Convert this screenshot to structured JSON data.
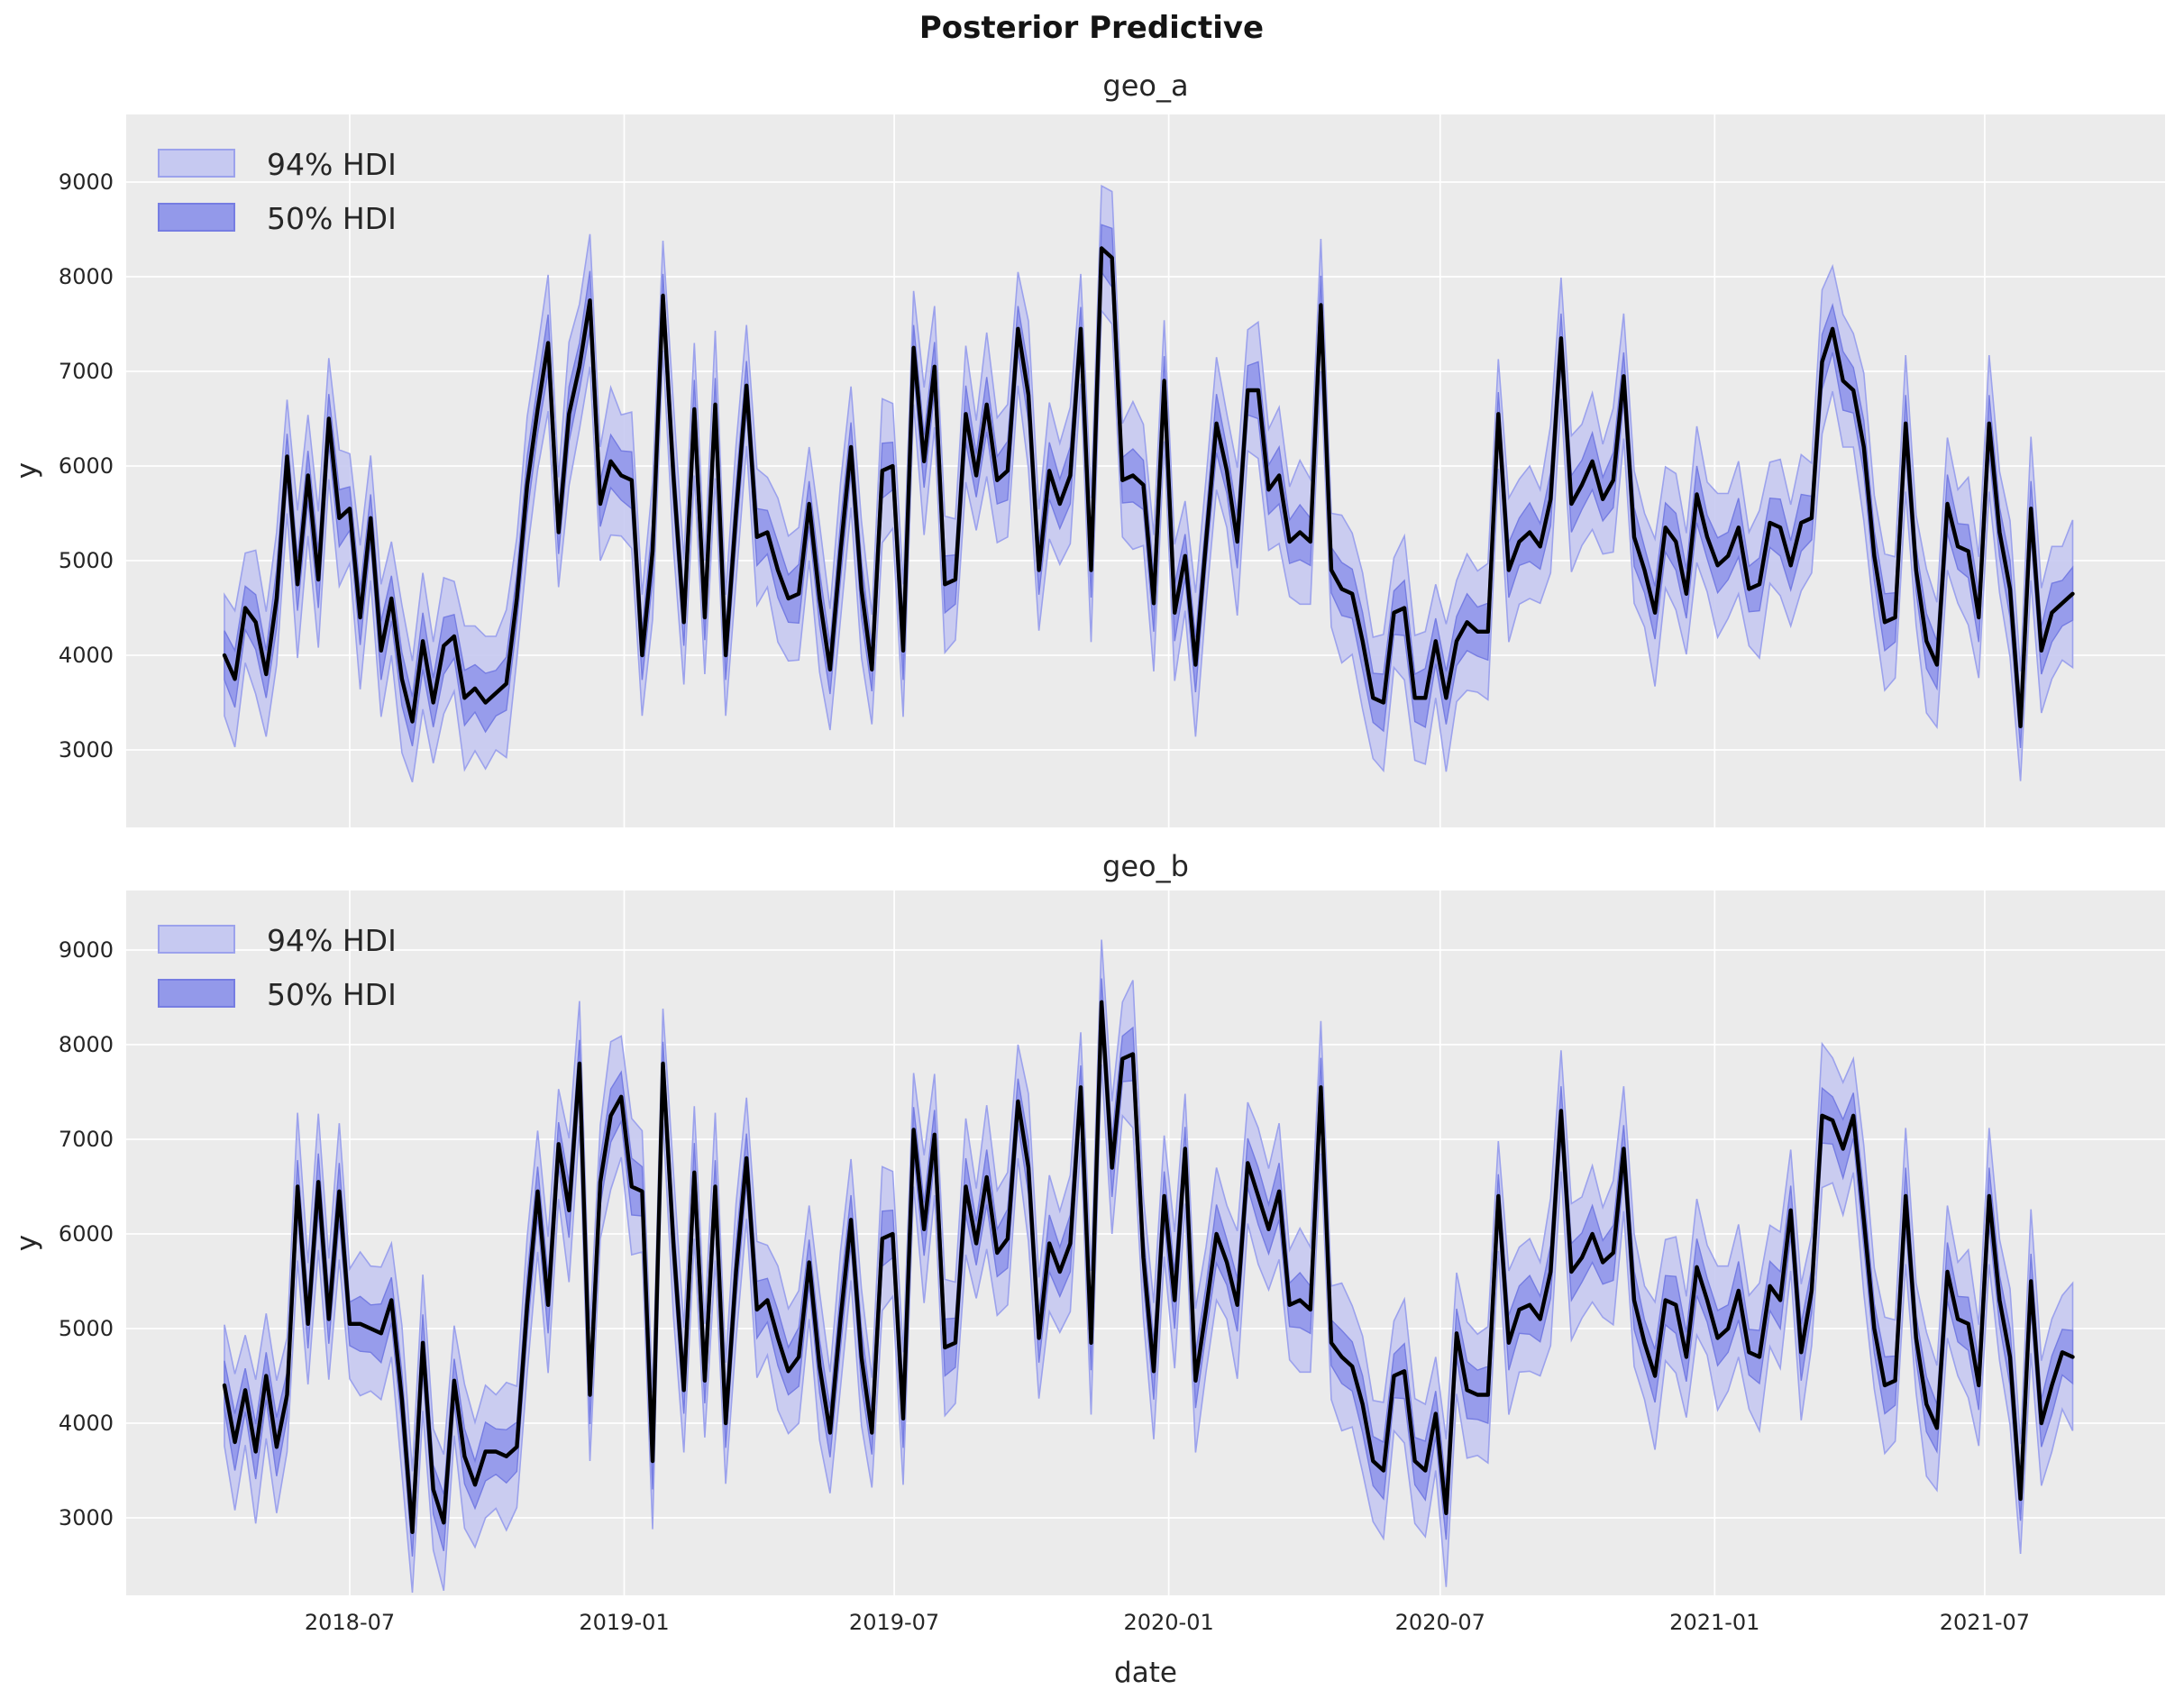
{
  "figure": {
    "suptitle": "Posterior Predictive"
  },
  "legend": {
    "hdi94_label": "94% HDI",
    "hdi50_label": "50% HDI"
  },
  "axes": {
    "x_label": "date",
    "y_label": "y",
    "y_tick_labels": [
      "3000",
      "4000",
      "5000",
      "6000",
      "7000",
      "8000",
      "9000"
    ],
    "x_tick_labels": [
      "2018-07",
      "2019-01",
      "2019-07",
      "2020-01",
      "2020-07",
      "2021-01",
      "2021-07"
    ]
  },
  "colors": {
    "figure_background": "#ffffff",
    "axes_background": "#ebebeb",
    "gridline": "#ffffff",
    "hdi94_fill": "#c6c9f1",
    "hdi94_edge": "#9ca2ec",
    "hdi50_fill": "#9399ea",
    "hdi50_edge": "#767de2",
    "observed_line": "#000000",
    "text": "#262626"
  },
  "chart_data": {
    "type": "line",
    "title": "Posterior Predictive",
    "xlabel": "date",
    "ylabel": "y",
    "grid": true,
    "legend_position": "upper left",
    "legend_entries": [
      "94% HDI",
      "50% HDI"
    ],
    "x_tick_dates": [
      "2018-07-01",
      "2019-01-01",
      "2019-07-01",
      "2020-01-01",
      "2020-07-01",
      "2021-01-01",
      "2021-07-01"
    ],
    "y_ticks": [
      3000,
      4000,
      5000,
      6000,
      7000,
      8000,
      9000
    ],
    "x_start_date": "2018-04-08",
    "x_step_days": 7,
    "n_points": 178,
    "x_end_date": "2021-08-29",
    "hdi94_halfwidth": [
      640,
      720,
      580,
      760,
      660,
      700,
      600,
      780,
      640,
      720,
      640,
      720,
      580,
      760,
      660,
      700,
      600,
      780,
      640,
      720,
      640,
      720,
      580,
      760,
      660,
      700,
      600,
      780,
      640,
      720,
      640,
      720,
      580,
      760,
      660,
      700,
      600,
      780,
      640,
      720,
      640,
      720,
      580,
      760,
      660,
      700,
      600,
      780,
      640,
      720,
      640,
      720,
      580,
      760,
      660,
      700,
      600,
      780,
      640,
      720,
      640,
      720,
      580,
      760,
      660,
      700,
      600,
      780,
      640,
      720,
      640,
      720,
      580,
      760,
      660,
      700,
      600,
      780,
      640,
      720,
      640,
      720,
      580,
      760,
      660,
      700,
      600,
      780,
      640,
      720,
      640,
      720,
      580,
      760,
      660,
      700,
      600,
      780,
      640,
      720,
      640,
      720,
      580,
      760,
      660,
      700,
      600,
      780,
      640,
      720,
      640,
      720,
      580,
      760,
      660,
      700,
      600,
      780,
      640,
      720,
      640,
      720,
      580,
      760,
      660,
      700,
      600,
      780,
      640,
      720,
      640,
      720,
      580,
      760,
      660,
      700,
      600,
      780,
      640,
      720,
      640,
      720,
      580,
      760,
      660,
      700,
      600,
      780,
      640,
      720,
      640,
      720,
      580,
      760,
      660,
      700,
      600,
      780,
      640,
      720,
      640,
      720,
      580,
      760,
      660,
      700,
      600,
      780,
      640,
      720,
      640,
      720,
      580,
      760,
      660,
      700,
      600,
      780
    ],
    "hdi50_halfwidth": [
      260,
      300,
      230,
      290,
      250,
      310,
      240,
      280,
      260,
      300,
      260,
      300,
      230,
      290,
      250,
      310,
      240,
      280,
      260,
      300,
      260,
      300,
      230,
      290,
      250,
      310,
      240,
      280,
      260,
      300,
      260,
      300,
      230,
      290,
      250,
      310,
      240,
      280,
      260,
      300,
      260,
      300,
      230,
      290,
      250,
      310,
      240,
      280,
      260,
      300,
      260,
      300,
      230,
      290,
      250,
      310,
      240,
      280,
      260,
      300,
      260,
      300,
      230,
      290,
      250,
      310,
      240,
      280,
      260,
      300,
      260,
      300,
      230,
      290,
      250,
      310,
      240,
      280,
      260,
      300,
      260,
      300,
      230,
      290,
      250,
      310,
      240,
      280,
      260,
      300,
      260,
      300,
      230,
      290,
      250,
      310,
      240,
      280,
      260,
      300,
      260,
      300,
      230,
      290,
      250,
      310,
      240,
      280,
      260,
      300,
      260,
      300,
      230,
      290,
      250,
      310,
      240,
      280,
      260,
      300,
      260,
      300,
      230,
      290,
      250,
      310,
      240,
      280,
      260,
      300,
      260,
      300,
      230,
      290,
      250,
      310,
      240,
      280,
      260,
      300,
      260,
      300,
      230,
      290,
      250,
      310,
      240,
      280,
      260,
      300,
      260,
      300,
      230,
      290,
      250,
      310,
      240,
      280,
      260,
      300,
      260,
      300,
      230,
      290,
      250,
      310,
      240,
      280,
      260,
      300,
      260,
      300,
      230,
      290,
      250,
      310,
      240,
      280
    ],
    "series": [
      {
        "name": "geo_a",
        "mean": [
          4000,
          3750,
          4500,
          4350,
          3800,
          4600,
          6100,
          4750,
          5900,
          4800,
          6500,
          5450,
          5550,
          4400,
          5450,
          4050,
          4600,
          3750,
          3300,
          4150,
          3500,
          4100,
          4200,
          3550,
          3650,
          3500,
          3600,
          3700,
          4600,
          5800,
          6600,
          7300,
          5300,
          6550,
          7050,
          7750,
          5600,
          6050,
          5900,
          5850,
          4000,
          5100,
          7800,
          5900,
          4350,
          6600,
          4400,
          6650,
          4000,
          5500,
          6850,
          5250,
          5300,
          4900,
          4600,
          4650,
          5600,
          4600,
          3850,
          5100,
          6200,
          4700,
          3850,
          5950,
          6000,
          4050,
          7250,
          6050,
          7050,
          4750,
          4800,
          6550,
          5900,
          6650,
          5850,
          5950,
          7450,
          6750,
          4900,
          5950,
          5600,
          5900,
          7450,
          4900,
          8300,
          8200,
          5850,
          5900,
          5800,
          4550,
          6900,
          4450,
          5050,
          3900,
          5200,
          6450,
          5950,
          5200,
          6800,
          6800,
          5750,
          5900,
          5200,
          5300,
          5200,
          7700,
          4900,
          4700,
          4650,
          4150,
          3550,
          3500,
          4450,
          4500,
          3550,
          3550,
          4150,
          3550,
          4150,
          4350,
          4250,
          4250,
          6550,
          4900,
          5200,
          5300,
          5150,
          5650,
          7350,
          5600,
          5800,
          6050,
          5650,
          5850,
          6950,
          5250,
          4900,
          4450,
          5350,
          5200,
          4650,
          5700,
          5250,
          4950,
          5050,
          5350,
          4700,
          4750,
          5400,
          5350,
          4950,
          5400,
          5450,
          7100,
          7450,
          6900,
          6800,
          6200,
          5050,
          4350,
          4400,
          6450,
          4900,
          4150,
          3900,
          5600,
          5150,
          5100,
          4400,
          6450,
          5300,
          4700,
          3250,
          5550,
          4050,
          4450,
          4550,
          4650
        ]
      },
      {
        "name": "geo_b",
        "mean": [
          4400,
          3800,
          4350,
          3700,
          4500,
          3750,
          4300,
          6500,
          5050,
          6550,
          5100,
          6450,
          5050,
          5050,
          5000,
          4950,
          5300,
          4250,
          2850,
          4850,
          3300,
          2950,
          4450,
          3650,
          3350,
          3700,
          3700,
          3650,
          3750,
          5250,
          6450,
          5250,
          6950,
          6250,
          7800,
          4300,
          6550,
          7250,
          7450,
          6500,
          6450,
          3600,
          7800,
          5900,
          4350,
          6650,
          4450,
          6500,
          4000,
          5600,
          6800,
          5200,
          5300,
          4900,
          4550,
          4700,
          5700,
          4600,
          3900,
          5100,
          6150,
          4700,
          3900,
          5950,
          6000,
          4050,
          7100,
          6050,
          7050,
          4800,
          4850,
          6500,
          5900,
          6600,
          5800,
          5950,
          7400,
          6700,
          4900,
          5900,
          5600,
          5900,
          7550,
          4850,
          8450,
          6700,
          7850,
          7900,
          5750,
          4550,
          6400,
          5300,
          6900,
          4450,
          5200,
          6000,
          5700,
          5250,
          6750,
          6400,
          6050,
          6450,
          5250,
          5300,
          5200,
          7550,
          4850,
          4700,
          4600,
          4200,
          3600,
          3500,
          4500,
          4550,
          3600,
          3500,
          4100,
          3050,
          4950,
          4350,
          4300,
          4300,
          6400,
          4850,
          5200,
          5250,
          5100,
          5600,
          7300,
          5600,
          5750,
          6000,
          5700,
          5800,
          6900,
          5300,
          4850,
          4500,
          5300,
          5250,
          4700,
          5650,
          5300,
          4900,
          5000,
          5400,
          4750,
          4700,
          5450,
          5300,
          6250,
          4750,
          5400,
          7250,
          7200,
          6900,
          7250,
          6150,
          5000,
          4400,
          4450,
          6400,
          4900,
          4200,
          3950,
          5600,
          5100,
          5050,
          4400,
          6400,
          5300,
          4700,
          3200,
          5500,
          4000,
          4400,
          4750,
          4700
        ]
      }
    ]
  }
}
